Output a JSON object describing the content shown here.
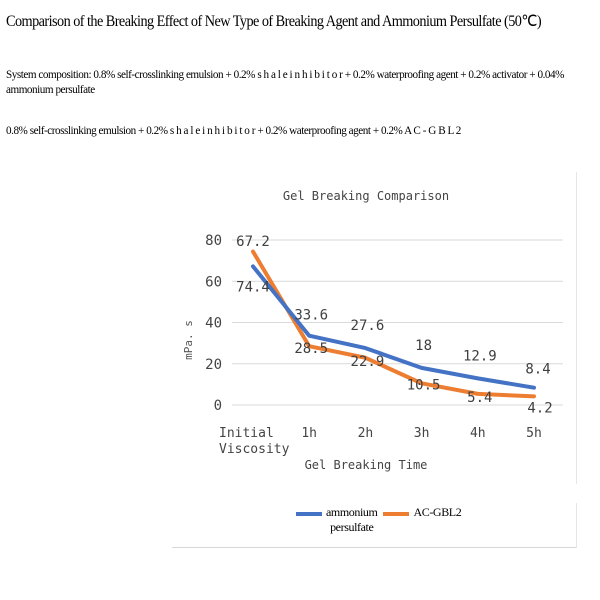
{
  "heading": "Comparison of the Breaking Effect of New Type of Breaking Agent and Ammonium Persulfate (50℃)",
  "paragraphs": [
    "System composition: 0.8% self-crosslinking emulsion + 0.2% s h a l e  i n h i b i t o r + 0.2% waterproofing agent + 0.2% activator + 0.04% ammonium persulfate",
    "0.8% self-crosslinking emulsion + 0.2% s h a l e  i n h i b i t o r + 0.2% waterproofing agent + 0.2% A C - G B L 2"
  ],
  "chart_data": {
    "type": "line",
    "title": "Gel Breaking Comparison",
    "xlabel": "Gel Breaking Time",
    "ylabel": "mPa. s",
    "categories": [
      "Initial Viscosity",
      "1h",
      "2h",
      "3h",
      "4h",
      "5h"
    ],
    "category_lines": [
      [
        "Initial",
        "Viscosity"
      ],
      [
        "1h"
      ],
      [
        "2h"
      ],
      [
        "3h"
      ],
      [
        "4h"
      ],
      [
        "5h"
      ]
    ],
    "ylim": [
      0,
      80
    ],
    "yticks": [
      0,
      20,
      40,
      60,
      80
    ],
    "grid": true,
    "legend_position": "bottom",
    "series": [
      {
        "name": "ammonium persulfate",
        "legend_lines": [
          "ammonium",
          "persulfate"
        ],
        "color": "#4472C4",
        "values": [
          67.2,
          33.6,
          27.6,
          18,
          12.9,
          8.4
        ],
        "data_labels": [
          "67.2",
          "33.6",
          "27.6",
          "18",
          "12.9",
          "8.4"
        ]
      },
      {
        "name": "AC-GBL2",
        "legend_lines": [
          "AC-GBL2"
        ],
        "color": "#ED7D31",
        "values": [
          74.4,
          28.5,
          22.9,
          10.5,
          5.4,
          4.2
        ],
        "data_labels": [
          "74.4",
          "28.5",
          "22.9",
          "10.5",
          "5.4",
          "4.2"
        ]
      }
    ]
  }
}
